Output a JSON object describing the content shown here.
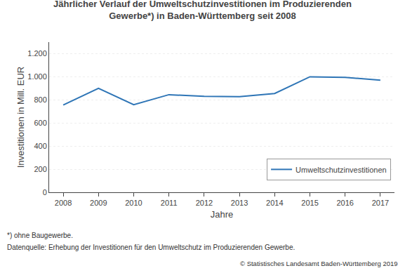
{
  "chart_data": {
    "type": "line",
    "title": "Jährlicher Verlauf der Umweltschutzinvestitionen im Produzierenden\nGewerbe*) in Baden-Württemberg seit 2008",
    "x": [
      2008,
      2009,
      2010,
      2011,
      2012,
      2013,
      2014,
      2015,
      2016,
      2017
    ],
    "series": [
      {
        "name": "Umweltschutzinvestitionen",
        "color": "#2E75B6",
        "values": [
          755,
          900,
          758,
          845,
          830,
          828,
          855,
          1000,
          995,
          970
        ]
      }
    ],
    "xlabel": "Jahre",
    "ylabel": "Investitionen in Mill. EUR",
    "xlim": [
      2007.6,
      2017.4
    ],
    "xticks": [
      2008,
      2009,
      2010,
      2011,
      2012,
      2013,
      2014,
      2015,
      2016,
      2017
    ],
    "ylim": [
      0,
      1300
    ],
    "yticks": [
      0,
      200,
      400,
      600,
      800,
      {
        "value": 1000,
        "label": "1.000"
      },
      {
        "value": 1200,
        "label": "1.200"
      }
    ],
    "grid": true,
    "legend": "lower right",
    "annotations": [
      "*) ohne Baugewerbe.",
      "Datenquelle: Erhebung der Investitionen für den Umweltschutz im Produzierenden Gewerbe.",
      "© Statistisches Landesamt Baden-Württemberg 2019"
    ]
  }
}
